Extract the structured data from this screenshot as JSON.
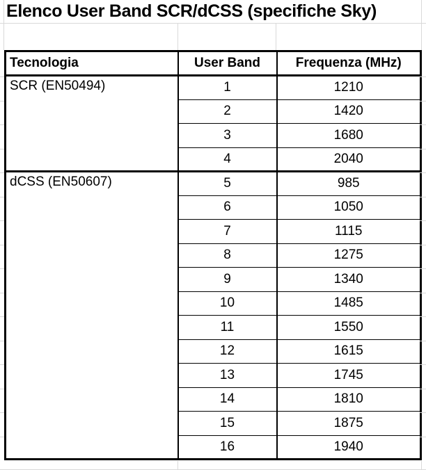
{
  "title": "Elenco User Band SCR/dCSS (specifiche Sky)",
  "table": {
    "headers": {
      "tecnologia": "Tecnologia",
      "user_band": "User Band",
      "frequenza": "Frequenza (MHz)"
    },
    "sections": [
      {
        "tecnologia": "SCR (EN50494)",
        "rows": [
          [
            "1",
            "1210"
          ],
          [
            "2",
            "1420"
          ],
          [
            "3",
            "1680"
          ],
          [
            "4",
            "2040"
          ]
        ]
      },
      {
        "tecnologia": "dCSS (EN50607)",
        "rows": [
          [
            "5",
            "985"
          ],
          [
            "6",
            "1050"
          ],
          [
            "7",
            "1115"
          ],
          [
            "8",
            "1275"
          ],
          [
            "9",
            "1340"
          ],
          [
            "10",
            "1485"
          ],
          [
            "11",
            "1550"
          ],
          [
            "12",
            "1615"
          ],
          [
            "13",
            "1745"
          ],
          [
            "14",
            "1810"
          ],
          [
            "15",
            "1875"
          ],
          [
            "16",
            "1940"
          ]
        ]
      }
    ]
  },
  "colors": {
    "border": "#000000",
    "gridline": "#d9d9d9",
    "background": "#ffffff",
    "text": "#000000"
  }
}
